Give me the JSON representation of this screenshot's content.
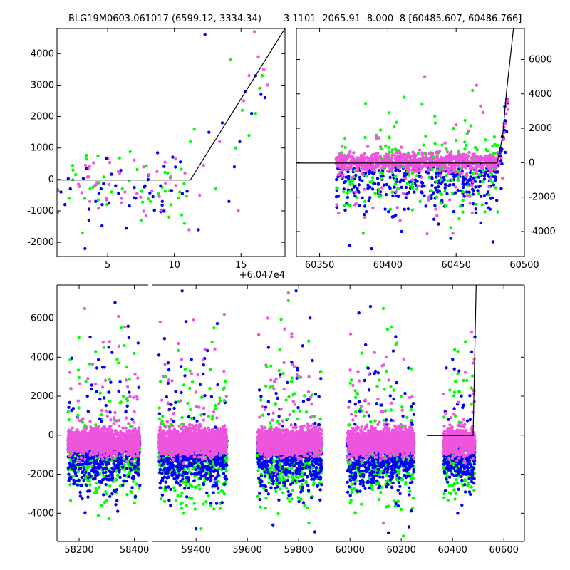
{
  "title": {
    "left": "BLG19M0603.061017 (6599.12, 3334.34)",
    "right": "3 1101 -2065.91 -8.000 -8 [60485.607, 60486.766]"
  },
  "colors": {
    "green": "#00ff00",
    "blue": "#0000ff",
    "magenta": "#ee55dd",
    "model": "#000000"
  },
  "chart_data": [
    {
      "id": "panel_zoom",
      "type": "scatter",
      "x_offset_label": "+6.047e4",
      "xlim": [
        1.2,
        18.3
      ],
      "ylim": [
        -2450,
        4800
      ],
      "xticks": [
        5,
        10,
        15
      ],
      "yticks": [
        -2000,
        -1000,
        0,
        1000,
        2000,
        3000,
        4000
      ],
      "model_line": [
        [
          1.2,
          -20
        ],
        [
          11.2,
          -20
        ],
        [
          18.3,
          4800
        ]
      ],
      "series": [
        {
          "color": "green",
          "points": [
            [
              2.1,
              -600
            ],
            [
              2.4,
              300
            ],
            [
              2.6,
              150
            ],
            [
              3.1,
              -1700
            ],
            [
              3.4,
              650
            ],
            [
              3.9,
              -250
            ],
            [
              4.3,
              -650
            ],
            [
              4.7,
              80
            ],
            [
              5.3,
              -400
            ],
            [
              6.1,
              -300
            ],
            [
              6.6,
              -50
            ],
            [
              7.5,
              -1300
            ],
            [
              8.2,
              -700
            ],
            [
              8.8,
              -450
            ],
            [
              9.6,
              -1200
            ],
            [
              10.4,
              -400
            ],
            [
              11.2,
              1200
            ],
            [
              11.5,
              1600
            ],
            [
              13.1,
              -300
            ],
            [
              14.2,
              3800
            ],
            [
              14.6,
              1000
            ],
            [
              15.1,
              2200
            ],
            [
              15.6,
              1400
            ],
            [
              16.1,
              2100
            ],
            [
              16.4,
              2900
            ],
            [
              16.6,
              3300
            ]
          ]
        },
        {
          "color": "blue",
          "points": [
            [
              1.5,
              -400
            ],
            [
              1.8,
              -800
            ],
            [
              2.2,
              -300
            ],
            [
              3.3,
              -2200
            ],
            [
              3.6,
              -1300
            ],
            [
              4.1,
              -700
            ],
            [
              4.5,
              -300
            ],
            [
              5.1,
              -750
            ],
            [
              5.6,
              -200
            ],
            [
              6.4,
              -1550
            ],
            [
              7.1,
              -600
            ],
            [
              7.8,
              -200
            ],
            [
              8.4,
              -550
            ],
            [
              9.1,
              -700
            ],
            [
              9.8,
              -350
            ],
            [
              10.6,
              -450
            ],
            [
              11.8,
              -1600
            ],
            [
              12.3,
              4600
            ],
            [
              12.6,
              1500
            ],
            [
              13.6,
              1800
            ],
            [
              14.1,
              -700
            ],
            [
              14.5,
              400
            ],
            [
              14.9,
              1200
            ],
            [
              15.3,
              2800
            ],
            [
              15.8,
              2100
            ],
            [
              16.1,
              3300
            ],
            [
              16.5,
              2700
            ],
            [
              16.8,
              2600
            ]
          ]
        },
        {
          "color": "magenta",
          "points": [
            [
              2.8,
              -150
            ],
            [
              3.6,
              350
            ],
            [
              4.2,
              -100
            ],
            [
              4.9,
              -650
            ],
            [
              5.8,
              250
            ],
            [
              6.3,
              -400
            ],
            [
              7.2,
              -450
            ],
            [
              7.7,
              400
            ],
            [
              8.1,
              150
            ],
            [
              8.7,
              250
            ],
            [
              9.3,
              550
            ],
            [
              9.7,
              50
            ],
            [
              10.1,
              650
            ],
            [
              10.8,
              200
            ],
            [
              11.1,
              -1600
            ],
            [
              11.9,
              -500
            ],
            [
              12.2,
              450
            ],
            [
              13.4,
              1200
            ],
            [
              14.8,
              -1000
            ],
            [
              15.2,
              2500
            ],
            [
              15.6,
              3300
            ],
            [
              16.0,
              4700
            ],
            [
              16.3,
              3900
            ],
            [
              16.7,
              3500
            ],
            [
              17.0,
              3000
            ]
          ]
        }
      ]
    },
    {
      "id": "panel_recent",
      "type": "scatter",
      "xlim": [
        60333,
        60500
      ],
      "ylim": [
        -5450,
        7800
      ],
      "xticks": [
        60350,
        60400,
        60450,
        60500
      ],
      "yticks": [
        -4000,
        -2000,
        0,
        2000,
        4000,
        6000
      ],
      "model_line": [
        [
          60333,
          -20
        ],
        [
          60480,
          -20
        ],
        [
          60484,
          1500
        ],
        [
          60487,
          4200
        ],
        [
          60492,
          7800
        ]
      ],
      "series": [
        {
          "color": "green",
          "points": [
            [
              60368,
              -2500
            ],
            [
              60382,
              -4100
            ],
            [
              60395,
              800
            ],
            [
              60401,
              2900
            ],
            [
              60412,
              3800
            ],
            [
              60418,
              -1500
            ],
            [
              60425,
              3400
            ],
            [
              60440,
              -300
            ],
            [
              60448,
              2000
            ],
            [
              60462,
              4200
            ],
            [
              60470,
              -500
            ],
            [
              60478,
              1500
            ],
            [
              60485,
              2300
            ]
          ]
        },
        {
          "color": "blue",
          "points": [
            [
              60372,
              -4800
            ],
            [
              60388,
              -5000
            ],
            [
              60398,
              -2700
            ],
            [
              60410,
              -4000
            ],
            [
              60423,
              -800
            ],
            [
              60437,
              -1400
            ],
            [
              60446,
              -4400
            ],
            [
              60455,
              -1100
            ],
            [
              60468,
              -3500
            ],
            [
              60477,
              -4600
            ],
            [
              60483,
              -1500
            ],
            [
              60486,
              600
            ],
            [
              60487,
              1800
            ]
          ]
        },
        {
          "color": "magenta",
          "points": [
            [
              60364,
              -700
            ],
            [
              60380,
              300
            ],
            [
              60392,
              1400
            ],
            [
              60406,
              600
            ],
            [
              60418,
              -1000
            ],
            [
              60427,
              5000
            ],
            [
              60435,
              -2700
            ],
            [
              60450,
              2200
            ],
            [
              60458,
              -1900
            ],
            [
              60465,
              4500
            ],
            [
              60476,
              -200
            ],
            [
              60484,
              -900
            ],
            [
              60488,
              3100
            ]
          ]
        }
      ]
    },
    {
      "id": "panel_full",
      "type": "scatter",
      "segments": [
        {
          "xlim": [
            58120,
            58450
          ],
          "xticks": [
            58200,
            58400
          ]
        },
        {
          "xlim": [
            59230,
            60680
          ],
          "xticks": [
            59400,
            59600,
            59800,
            60000,
            60200,
            60400,
            60600
          ]
        }
      ],
      "ylim": [
        -5450,
        7700
      ],
      "yticks": [
        -4000,
        -2000,
        0,
        2000,
        4000,
        6000
      ],
      "model_line": [
        [
          60300,
          -20
        ],
        [
          60480,
          -20
        ],
        [
          60486,
          4000
        ],
        [
          60492,
          7700
        ]
      ],
      "seasons": [
        [
          58160,
          58420
        ],
        [
          59255,
          59520
        ],
        [
          59640,
          59890
        ],
        [
          59990,
          60250
        ],
        [
          60365,
          60487
        ]
      ],
      "series": [
        {
          "color": "green",
          "points": [
            [
              58200,
              5000
            ],
            [
              58290,
              4500
            ],
            [
              58330,
              -1200
            ],
            [
              58370,
              3500
            ],
            [
              59280,
              3000
            ],
            [
              59350,
              -4000
            ],
            [
              59420,
              -4800
            ],
            [
              59470,
              5500
            ],
            [
              59760,
              6900
            ],
            [
              59800,
              3000
            ],
            [
              59840,
              -4500
            ],
            [
              60030,
              2100
            ],
            [
              60130,
              6500
            ],
            [
              60200,
              -3800
            ],
            [
              60420,
              4300
            ],
            [
              60450,
              4800
            ]
          ]
        },
        {
          "color": "blue",
          "points": [
            [
              58180,
              -2500
            ],
            [
              58230,
              2000
            ],
            [
              58330,
              6800
            ],
            [
              58380,
              5000
            ],
            [
              59300,
              -3600
            ],
            [
              59400,
              -4800
            ],
            [
              59480,
              -3500
            ],
            [
              59700,
              -4600
            ],
            [
              59790,
              7400
            ],
            [
              59850,
              -3200
            ],
            [
              60020,
              -2500
            ],
            [
              60080,
              6600
            ],
            [
              60150,
              -5000
            ],
            [
              60230,
              -4700
            ],
            [
              60420,
              -4000
            ],
            [
              60470,
              -2000
            ]
          ]
        },
        {
          "color": "magenta",
          "points": [
            [
              58170,
              2400
            ],
            [
              58220,
              6500
            ],
            [
              58310,
              4800
            ],
            [
              58400,
              1200
            ],
            [
              59260,
              5800
            ],
            [
              59330,
              4700
            ],
            [
              59390,
              5900
            ],
            [
              59510,
              6200
            ],
            [
              59680,
              6000
            ],
            [
              59760,
              7300
            ],
            [
              59840,
              3000
            ],
            [
              60010,
              -1000
            ],
            [
              60060,
              1800
            ],
            [
              60130,
              -4500
            ],
            [
              60210,
              3900
            ],
            [
              60440,
              -200
            ],
            [
              60480,
              2300
            ]
          ]
        }
      ]
    }
  ]
}
